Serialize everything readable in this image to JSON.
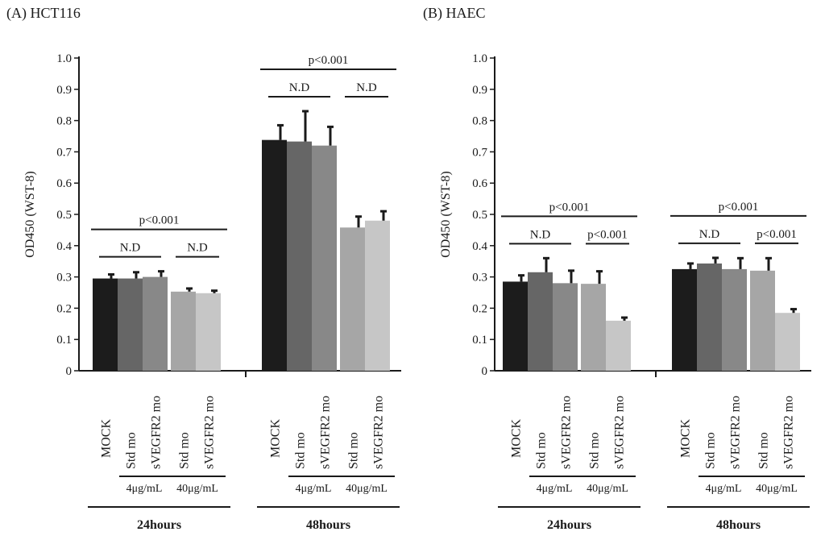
{
  "chart_data": [
    {
      "type": "bar",
      "panel_label": "(A) HCT116",
      "ylabel": "OD450 (WST-8)",
      "ylim": [
        0,
        1.0
      ],
      "y_ticks": [
        "0",
        "0.1",
        "0.2",
        "0.3",
        "0.4",
        "0.5",
        "0.6",
        "0.7",
        "0.8",
        "0.9",
        "1.0"
      ],
      "bar_labels": [
        "MOCK",
        "Std mo",
        "sVEGFR2 mo",
        "Std mo",
        "sVEGFR2 mo"
      ],
      "dose_labels": [
        "4μg/mL",
        "40μg/mL"
      ],
      "groups": [
        {
          "name": "24hours",
          "values": [
            0.295,
            0.295,
            0.3,
            0.253,
            0.248
          ],
          "errors": [
            0.013,
            0.02,
            0.018,
            0.01,
            0.008
          ],
          "annotations": [
            {
              "text": "p<0.001",
              "from": 0,
              "to": 4,
              "level": 0
            },
            {
              "text": "N.D",
              "from": 0,
              "to": 2,
              "level": 1
            },
            {
              "text": "N.D",
              "from": 3,
              "to": 4,
              "level": 1
            }
          ]
        },
        {
          "name": "48hours",
          "values": [
            0.738,
            0.733,
            0.72,
            0.458,
            0.48
          ],
          "errors": [
            0.047,
            0.097,
            0.06,
            0.035,
            0.03
          ],
          "annotations": [
            {
              "text": "p<0.001",
              "from": 0,
              "to": 4,
              "level": 0
            },
            {
              "text": "N.D",
              "from": 0,
              "to": 2,
              "level": 1
            },
            {
              "text": "N.D",
              "from": 3,
              "to": 4,
              "level": 1
            }
          ]
        }
      ],
      "colors": [
        "#1c1c1c",
        "#666666",
        "#888888",
        "#a6a6a6",
        "#c6c6c6"
      ]
    },
    {
      "type": "bar",
      "panel_label": "(B) HAEC",
      "ylabel": "OD450 (WST-8)",
      "ylim": [
        0,
        1.0
      ],
      "y_ticks": [
        "0",
        "0.1",
        "0.2",
        "0.3",
        "0.4",
        "0.5",
        "0.6",
        "0.7",
        "0.8",
        "0.9",
        "1.0"
      ],
      "bar_labels": [
        "MOCK",
        "Std mo",
        "sVEGFR2 mo",
        "Std mo",
        "sVEGFR2 mo"
      ],
      "dose_labels": [
        "4μg/mL",
        "40μg/mL"
      ],
      "groups": [
        {
          "name": "24hours",
          "values": [
            0.285,
            0.315,
            0.28,
            0.278,
            0.16
          ],
          "errors": [
            0.02,
            0.045,
            0.04,
            0.04,
            0.01
          ],
          "annotations": [
            {
              "text": "p<0.001",
              "from": 0,
              "to": 4,
              "level": 0
            },
            {
              "text": "N.D",
              "from": 0,
              "to": 2,
              "level": 1
            },
            {
              "text": "p<0.001",
              "from": 3,
              "to": 4,
              "level": 1
            }
          ]
        },
        {
          "name": "48hours",
          "values": [
            0.325,
            0.343,
            0.325,
            0.32,
            0.185
          ],
          "errors": [
            0.018,
            0.018,
            0.035,
            0.04,
            0.012
          ],
          "annotations": [
            {
              "text": "p<0.001",
              "from": 0,
              "to": 4,
              "level": 0
            },
            {
              "text": "N.D",
              "from": 0,
              "to": 2,
              "level": 1
            },
            {
              "text": "p<0.001",
              "from": 3,
              "to": 4,
              "level": 1
            }
          ]
        }
      ],
      "colors": [
        "#1c1c1c",
        "#666666",
        "#888888",
        "#a6a6a6",
        "#c6c6c6"
      ]
    }
  ]
}
